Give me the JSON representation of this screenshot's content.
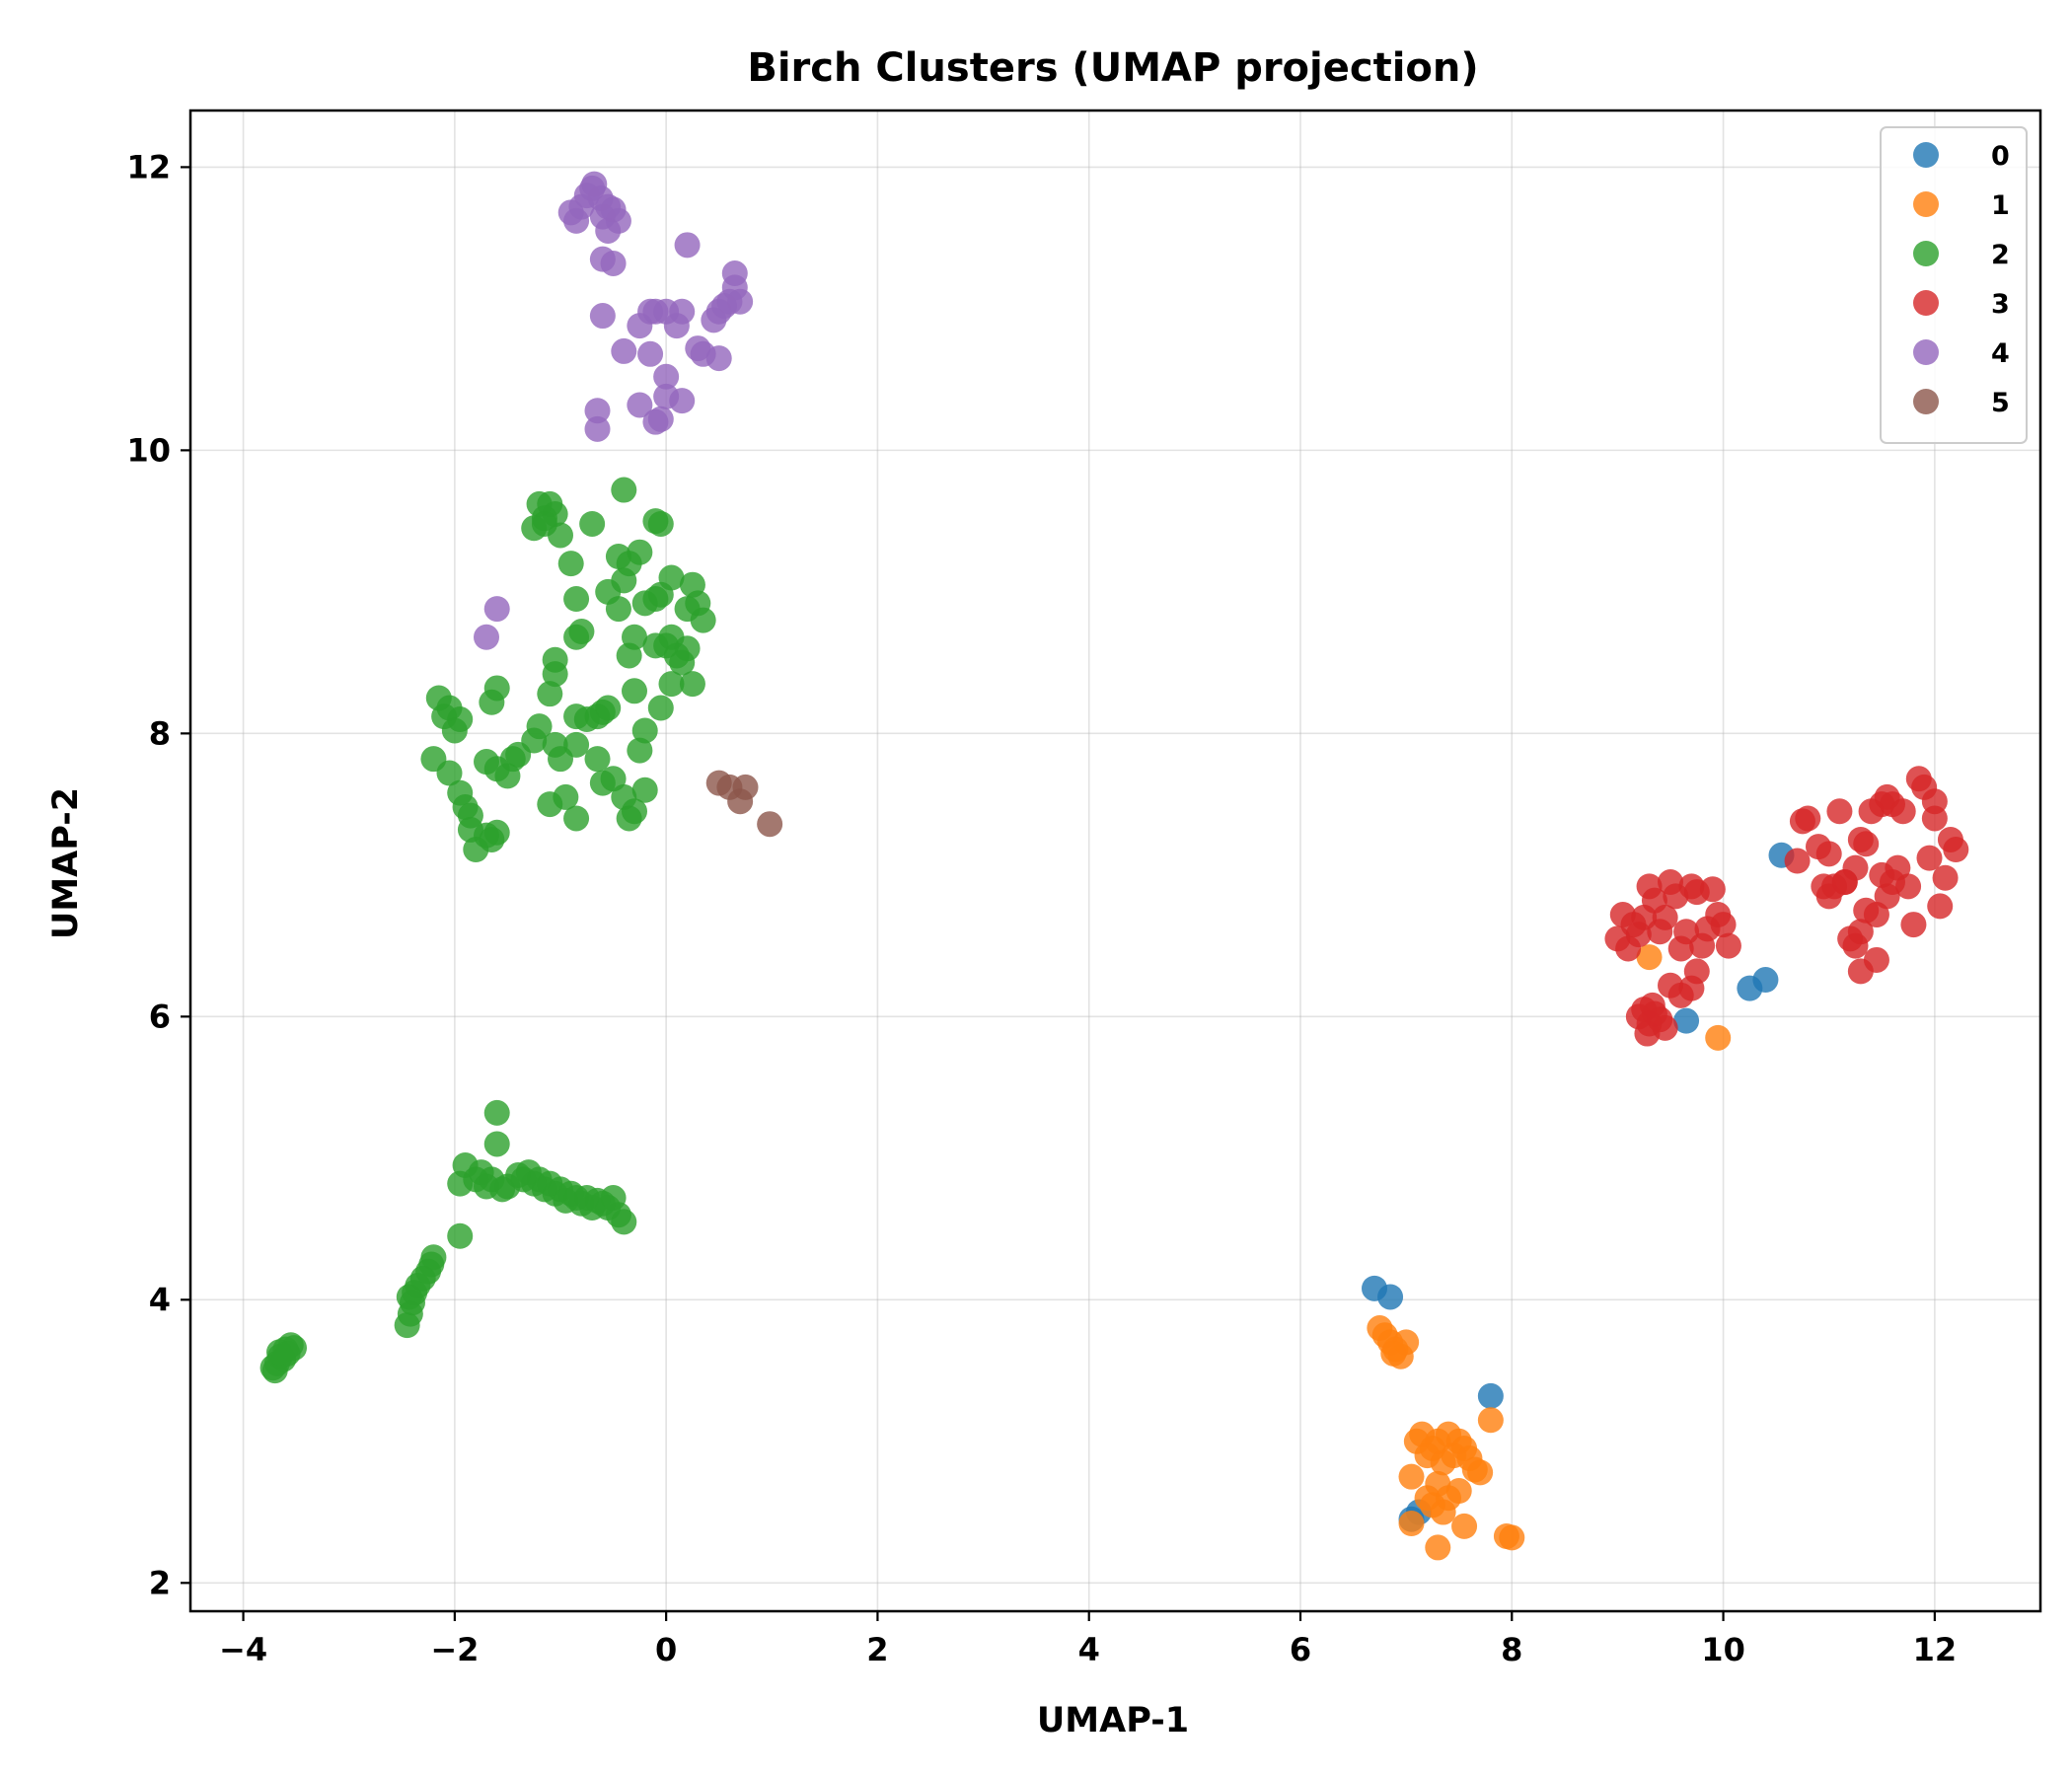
{
  "chart_data": {
    "type": "scatter",
    "title": "Birch Clusters (UMAP projection)",
    "xlabel": "UMAP-1",
    "ylabel": "UMAP-2",
    "xlim": [
      -4.5,
      13.0
    ],
    "ylim": [
      1.8,
      12.4
    ],
    "xticks": [
      -4,
      -2,
      0,
      2,
      4,
      6,
      8,
      10,
      12
    ],
    "xtick_labels": [
      "−4",
      "−2",
      "0",
      "2",
      "4",
      "6",
      "8",
      "10",
      "12"
    ],
    "yticks": [
      2,
      4,
      6,
      8,
      10,
      12
    ],
    "ytick_labels": [
      "2",
      "4",
      "6",
      "8",
      "10",
      "12"
    ],
    "grid": true,
    "legend_position": "top-right",
    "series": [
      {
        "name": "0",
        "color": "#1f77b4",
        "points": [
          [
            6.7,
            4.08
          ],
          [
            6.85,
            4.02
          ],
          [
            7.8,
            3.32
          ],
          [
            7.05,
            2.45
          ],
          [
            7.12,
            2.5
          ],
          [
            9.65,
            5.97
          ],
          [
            10.25,
            6.2
          ],
          [
            10.4,
            6.26
          ],
          [
            10.55,
            7.14
          ]
        ]
      },
      {
        "name": "1",
        "color": "#ff7f0e",
        "points": [
          [
            6.75,
            3.8
          ],
          [
            6.8,
            3.75
          ],
          [
            6.85,
            3.7
          ],
          [
            6.9,
            3.65
          ],
          [
            6.95,
            3.6
          ],
          [
            7.0,
            3.7
          ],
          [
            6.88,
            3.62
          ],
          [
            7.1,
            3.0
          ],
          [
            7.15,
            3.05
          ],
          [
            7.2,
            2.9
          ],
          [
            7.25,
            2.95
          ],
          [
            7.3,
            3.0
          ],
          [
            7.35,
            2.85
          ],
          [
            7.4,
            3.05
          ],
          [
            7.45,
            2.9
          ],
          [
            7.5,
            3.0
          ],
          [
            7.55,
            2.95
          ],
          [
            7.6,
            2.88
          ],
          [
            7.65,
            2.8
          ],
          [
            7.7,
            2.78
          ],
          [
            7.3,
            2.7
          ],
          [
            7.4,
            2.6
          ],
          [
            7.5,
            2.65
          ],
          [
            7.2,
            2.6
          ],
          [
            7.25,
            2.55
          ],
          [
            7.35,
            2.5
          ],
          [
            7.05,
            2.75
          ],
          [
            7.55,
            2.4
          ],
          [
            7.3,
            2.25
          ],
          [
            7.8,
            3.15
          ],
          [
            7.95,
            2.33
          ],
          [
            8.0,
            2.32
          ],
          [
            7.05,
            2.42
          ],
          [
            9.3,
            6.42
          ],
          [
            9.95,
            5.85
          ]
        ]
      },
      {
        "name": "2",
        "color": "#2ca02c",
        "points": [
          [
            -3.7,
            3.5
          ],
          [
            -3.68,
            3.55
          ],
          [
            -3.65,
            3.6
          ],
          [
            -3.62,
            3.58
          ],
          [
            -3.6,
            3.65
          ],
          [
            -3.58,
            3.62
          ],
          [
            -3.55,
            3.68
          ],
          [
            -3.52,
            3.66
          ],
          [
            -3.72,
            3.52
          ],
          [
            -3.66,
            3.63
          ],
          [
            -2.45,
            3.82
          ],
          [
            -2.42,
            3.9
          ],
          [
            -2.4,
            3.98
          ],
          [
            -2.38,
            4.05
          ],
          [
            -2.35,
            4.1
          ],
          [
            -2.3,
            4.15
          ],
          [
            -2.25,
            4.2
          ],
          [
            -2.22,
            4.25
          ],
          [
            -2.2,
            4.3
          ],
          [
            -2.43,
            4.02
          ],
          [
            -1.95,
            4.45
          ],
          [
            -1.95,
            4.82
          ],
          [
            -1.9,
            4.95
          ],
          [
            -1.8,
            4.85
          ],
          [
            -1.75,
            4.9
          ],
          [
            -1.7,
            4.8
          ],
          [
            -1.65,
            4.85
          ],
          [
            -1.6,
            5.1
          ],
          [
            -1.6,
            5.32
          ],
          [
            -1.55,
            4.78
          ],
          [
            -1.5,
            4.8
          ],
          [
            -1.4,
            4.88
          ],
          [
            -1.35,
            4.85
          ],
          [
            -1.3,
            4.9
          ],
          [
            -1.25,
            4.82
          ],
          [
            -1.2,
            4.85
          ],
          [
            -1.15,
            4.78
          ],
          [
            -1.1,
            4.82
          ],
          [
            -1.05,
            4.75
          ],
          [
            -1.0,
            4.78
          ],
          [
            -0.95,
            4.7
          ],
          [
            -0.9,
            4.75
          ],
          [
            -0.85,
            4.72
          ],
          [
            -0.8,
            4.68
          ],
          [
            -0.75,
            4.72
          ],
          [
            -0.7,
            4.65
          ],
          [
            -0.65,
            4.7
          ],
          [
            -0.6,
            4.68
          ],
          [
            -0.55,
            4.65
          ],
          [
            -0.5,
            4.72
          ],
          [
            -0.45,
            4.6
          ],
          [
            -0.4,
            4.55
          ],
          [
            -2.2,
            7.82
          ],
          [
            -2.05,
            7.72
          ],
          [
            -1.95,
            7.58
          ],
          [
            -1.9,
            7.48
          ],
          [
            -1.85,
            7.42
          ],
          [
            -1.85,
            7.32
          ],
          [
            -1.8,
            7.18
          ],
          [
            -1.7,
            7.28
          ],
          [
            -1.65,
            7.25
          ],
          [
            -1.6,
            7.3
          ],
          [
            -1.5,
            7.7
          ],
          [
            -1.45,
            7.82
          ],
          [
            -1.4,
            7.85
          ],
          [
            -1.7,
            7.8
          ],
          [
            -1.6,
            7.75
          ],
          [
            -2.1,
            8.12
          ],
          [
            -2.15,
            8.25
          ],
          [
            -2.05,
            8.18
          ],
          [
            -2.0,
            8.02
          ],
          [
            -1.95,
            8.1
          ],
          [
            -1.65,
            8.22
          ],
          [
            -1.6,
            8.32
          ],
          [
            -1.25,
            7.95
          ],
          [
            -1.2,
            8.05
          ],
          [
            -1.1,
            8.28
          ],
          [
            -1.05,
            8.42
          ],
          [
            -1.05,
            8.52
          ],
          [
            -1.05,
            7.92
          ],
          [
            -1.0,
            7.82
          ],
          [
            -1.1,
            7.5
          ],
          [
            -0.95,
            7.55
          ],
          [
            -0.85,
            7.4
          ],
          [
            -0.85,
            7.92
          ],
          [
            -0.75,
            8.1
          ],
          [
            -0.65,
            8.12
          ],
          [
            -0.6,
            8.15
          ],
          [
            -0.55,
            8.18
          ],
          [
            -0.85,
            8.12
          ],
          [
            -0.65,
            7.82
          ],
          [
            -0.6,
            7.65
          ],
          [
            -0.5,
            7.68
          ],
          [
            -0.4,
            7.55
          ],
          [
            -0.35,
            7.4
          ],
          [
            -0.3,
            7.45
          ],
          [
            -0.25,
            7.88
          ],
          [
            -0.2,
            8.02
          ],
          [
            -0.3,
            8.3
          ],
          [
            -0.2,
            7.6
          ],
          [
            -0.05,
            8.18
          ],
          [
            0.05,
            8.35
          ],
          [
            -0.85,
            8.68
          ],
          [
            -0.8,
            8.72
          ],
          [
            -0.85,
            8.95
          ],
          [
            -0.55,
            9.0
          ],
          [
            -0.45,
            8.88
          ],
          [
            -0.35,
            8.55
          ],
          [
            -0.3,
            8.68
          ],
          [
            -0.2,
            8.92
          ],
          [
            -0.1,
            8.95
          ],
          [
            -0.05,
            8.98
          ],
          [
            0.0,
            8.62
          ],
          [
            0.05,
            8.68
          ],
          [
            0.1,
            8.55
          ],
          [
            0.15,
            8.5
          ],
          [
            0.2,
            8.88
          ],
          [
            0.25,
            9.05
          ],
          [
            0.3,
            8.92
          ],
          [
            0.35,
            8.8
          ],
          [
            0.25,
            8.35
          ],
          [
            0.05,
            9.1
          ],
          [
            -0.1,
            9.5
          ],
          [
            -0.05,
            9.48
          ],
          [
            -0.25,
            9.28
          ],
          [
            -0.35,
            9.2
          ],
          [
            -0.45,
            9.25
          ],
          [
            -0.4,
            9.72
          ],
          [
            -0.7,
            9.48
          ],
          [
            -0.9,
            9.2
          ],
          [
            -1.0,
            9.4
          ],
          [
            -1.15,
            9.48
          ],
          [
            -1.2,
            9.62
          ],
          [
            -1.1,
            9.62
          ],
          [
            -1.05,
            9.55
          ],
          [
            -1.25,
            9.45
          ],
          [
            -1.15,
            9.52
          ],
          [
            -0.1,
            8.62
          ],
          [
            -0.4,
            9.08
          ],
          [
            0.2,
            8.6
          ]
        ]
      },
      {
        "name": "3",
        "color": "#d62728",
        "points": [
          [
            9.0,
            6.55
          ],
          [
            9.05,
            6.72
          ],
          [
            9.1,
            6.48
          ],
          [
            9.15,
            6.65
          ],
          [
            9.2,
            6.58
          ],
          [
            9.25,
            6.7
          ],
          [
            9.3,
            6.92
          ],
          [
            9.35,
            6.82
          ],
          [
            9.4,
            6.6
          ],
          [
            9.45,
            6.7
          ],
          [
            9.5,
            6.95
          ],
          [
            9.55,
            6.85
          ],
          [
            9.6,
            6.48
          ],
          [
            9.65,
            6.6
          ],
          [
            9.7,
            6.92
          ],
          [
            9.75,
            6.88
          ],
          [
            9.8,
            6.5
          ],
          [
            9.85,
            6.62
          ],
          [
            9.9,
            6.9
          ],
          [
            9.95,
            6.72
          ],
          [
            10.0,
            6.65
          ],
          [
            10.05,
            6.5
          ],
          [
            9.25,
            6.05
          ],
          [
            9.3,
            5.95
          ],
          [
            9.28,
            5.88
          ],
          [
            9.35,
            6.02
          ],
          [
            9.4,
            5.98
          ],
          [
            9.45,
            5.92
          ],
          [
            9.5,
            6.22
          ],
          [
            9.6,
            6.15
          ],
          [
            9.7,
            6.2
          ],
          [
            9.75,
            6.32
          ],
          [
            9.2,
            6.0
          ],
          [
            9.33,
            6.08
          ],
          [
            10.7,
            7.1
          ],
          [
            10.75,
            7.38
          ],
          [
            10.8,
            7.4
          ],
          [
            10.9,
            7.2
          ],
          [
            11.0,
            7.15
          ],
          [
            11.0,
            6.85
          ],
          [
            11.05,
            6.92
          ],
          [
            11.1,
            7.45
          ],
          [
            11.15,
            6.95
          ],
          [
            11.2,
            6.55
          ],
          [
            11.25,
            6.5
          ],
          [
            11.3,
            6.6
          ],
          [
            11.3,
            6.32
          ],
          [
            11.35,
            7.22
          ],
          [
            11.35,
            6.75
          ],
          [
            11.4,
            7.45
          ],
          [
            11.45,
            6.4
          ],
          [
            11.5,
            7.0
          ],
          [
            11.55,
            7.55
          ],
          [
            11.55,
            6.85
          ],
          [
            11.6,
            7.5
          ],
          [
            11.65,
            7.05
          ],
          [
            11.7,
            7.45
          ],
          [
            11.75,
            6.92
          ],
          [
            11.8,
            6.65
          ],
          [
            11.85,
            7.68
          ],
          [
            11.9,
            7.62
          ],
          [
            11.95,
            7.12
          ],
          [
            12.0,
            7.52
          ],
          [
            12.0,
            7.4
          ],
          [
            12.05,
            6.78
          ],
          [
            12.1,
            6.98
          ],
          [
            12.15,
            7.25
          ],
          [
            12.2,
            7.18
          ],
          [
            11.3,
            7.25
          ],
          [
            11.45,
            6.72
          ],
          [
            11.25,
            7.05
          ],
          [
            11.6,
            6.95
          ],
          [
            10.95,
            6.92
          ],
          [
            11.15,
            6.95
          ],
          [
            11.5,
            7.5
          ]
        ]
      },
      {
        "name": "4",
        "color": "#9467bd",
        "points": [
          [
            -0.9,
            11.68
          ],
          [
            -0.85,
            11.62
          ],
          [
            -0.8,
            11.72
          ],
          [
            -0.75,
            11.8
          ],
          [
            -0.7,
            11.85
          ],
          [
            -0.68,
            11.88
          ],
          [
            -0.62,
            11.78
          ],
          [
            -0.6,
            11.65
          ],
          [
            -0.55,
            11.72
          ],
          [
            -0.5,
            11.7
          ],
          [
            -0.45,
            11.62
          ],
          [
            -0.55,
            11.55
          ],
          [
            -0.6,
            11.35
          ],
          [
            -0.5,
            11.32
          ],
          [
            0.2,
            11.45
          ],
          [
            -0.6,
            10.95
          ],
          [
            -0.4,
            10.7
          ],
          [
            -0.25,
            10.88
          ],
          [
            -0.15,
            10.98
          ],
          [
            -0.1,
            10.98
          ],
          [
            0.0,
            10.98
          ],
          [
            0.1,
            10.88
          ],
          [
            0.15,
            10.98
          ],
          [
            0.3,
            10.72
          ],
          [
            0.35,
            10.68
          ],
          [
            0.45,
            10.92
          ],
          [
            0.5,
            10.98
          ],
          [
            0.55,
            11.02
          ],
          [
            0.6,
            11.05
          ],
          [
            0.65,
            11.15
          ],
          [
            0.65,
            11.25
          ],
          [
            0.7,
            11.05
          ],
          [
            0.5,
            10.65
          ],
          [
            0.15,
            10.35
          ],
          [
            0.0,
            10.52
          ],
          [
            -0.15,
            10.68
          ],
          [
            -0.25,
            10.32
          ],
          [
            -0.1,
            10.2
          ],
          [
            -0.05,
            10.22
          ],
          [
            0.0,
            10.38
          ],
          [
            -0.65,
            10.28
          ],
          [
            -0.65,
            10.15
          ],
          [
            -1.7,
            8.68
          ],
          [
            -1.6,
            8.88
          ]
        ]
      },
      {
        "name": "5",
        "color": "#8c564b",
        "points": [
          [
            0.5,
            7.65
          ],
          [
            0.6,
            7.62
          ],
          [
            0.7,
            7.52
          ],
          [
            0.75,
            7.62
          ],
          [
            0.98,
            7.36
          ]
        ]
      }
    ]
  }
}
